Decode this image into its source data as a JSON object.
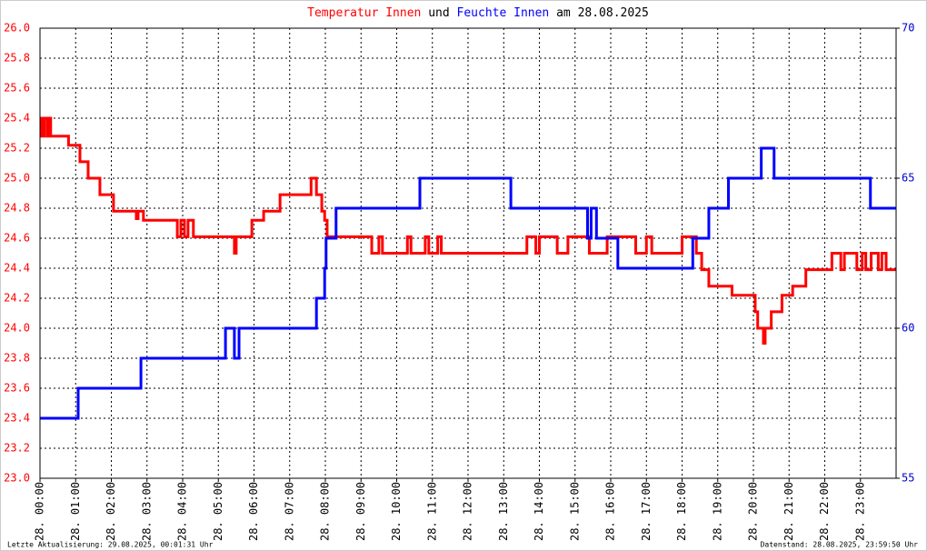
{
  "chart_data": {
    "type": "line",
    "title_connector": "und",
    "title_date": "am 28.08.2025",
    "annotations": [
      "Letzte Aktualisierung: 29.08.2025, 00:01:31 Uhr",
      "Datenstand: 28.08.2025, 23:59:50 Uhr"
    ],
    "xlim": [
      0,
      24
    ],
    "xticks": [
      {
        "value": 0,
        "label": "28. 00:00"
      },
      {
        "value": 1,
        "label": "28. 01:00"
      },
      {
        "value": 2,
        "label": "28. 02:00"
      },
      {
        "value": 3,
        "label": "28. 03:00"
      },
      {
        "value": 4,
        "label": "28. 04:00"
      },
      {
        "value": 5,
        "label": "28. 05:00"
      },
      {
        "value": 6,
        "label": "28. 06:00"
      },
      {
        "value": 7,
        "label": "28. 07:00"
      },
      {
        "value": 8,
        "label": "28. 08:00"
      },
      {
        "value": 9,
        "label": "28. 09:00"
      },
      {
        "value": 10,
        "label": "28. 10:00"
      },
      {
        "value": 11,
        "label": "28. 11:00"
      },
      {
        "value": 12,
        "label": "28. 12:00"
      },
      {
        "value": 13,
        "label": "28. 13:00"
      },
      {
        "value": 14,
        "label": "28. 14:00"
      },
      {
        "value": 15,
        "label": "28. 15:00"
      },
      {
        "value": 16,
        "label": "28. 16:00"
      },
      {
        "value": 17,
        "label": "28. 17:00"
      },
      {
        "value": 18,
        "label": "28. 18:00"
      },
      {
        "value": 19,
        "label": "28. 19:00"
      },
      {
        "value": 20,
        "label": "28. 20:00"
      },
      {
        "value": 21,
        "label": "28. 21:00"
      },
      {
        "value": 22,
        "label": "28. 22:00"
      },
      {
        "value": 23,
        "label": "28. 23:00"
      }
    ],
    "ylim": [
      23,
      26
    ],
    "yticks": [
      {
        "value": 23,
        "label": "23.0"
      },
      23.2,
      23.4,
      23.6,
      23.8,
      {
        "value": 24,
        "label": "24.0"
      },
      24.2,
      24.4,
      24.6,
      24.8,
      {
        "value": 25,
        "label": "25.0"
      },
      25.2,
      25.4,
      25.6,
      25.8,
      {
        "value": 26,
        "label": "26.0"
      }
    ],
    "y2lim": [
      55,
      70
    ],
    "y2ticks": [
      55,
      60,
      65,
      70
    ],
    "grid": true,
    "y_color": "#ff0000",
    "y2_color": "#0000cc",
    "series": [
      {
        "name": "Temperatur Innen",
        "color": "#ff0000",
        "axis": "y",
        "x": [
          0,
          0.05,
          0.05,
          0.12,
          0.12,
          0.2,
          0.2,
          0.25,
          0.25,
          0.3,
          0.3,
          0.8,
          0.8,
          1.12,
          1.12,
          1.35,
          1.35,
          1.68,
          1.68,
          2.06,
          2.06,
          2.7,
          2.7,
          2.75,
          2.75,
          2.9,
          2.9,
          3.85,
          3.85,
          3.95,
          3.95,
          4.05,
          4.05,
          4.15,
          4.15,
          4.3,
          4.3,
          5.45,
          5.45,
          5.5,
          5.5,
          5.94,
          5.94,
          6.27,
          6.27,
          6.73,
          6.73,
          7.6,
          7.6,
          7.75,
          7.75,
          7.9,
          7.9,
          7.98,
          7.98,
          8.05,
          8.05,
          9.3,
          9.3,
          9.5,
          9.5,
          9.6,
          9.6,
          10.3,
          10.3,
          10.4,
          10.4,
          10.8,
          10.8,
          10.9,
          10.9,
          11.15,
          11.15,
          11.25,
          11.25,
          13.65,
          13.65,
          13.9,
          13.9,
          14.0,
          14.0,
          14.5,
          14.5,
          14.8,
          14.8,
          15.4,
          15.4,
          15.9,
          15.9,
          16.7,
          16.7,
          17.0,
          17.0,
          17.15,
          17.15,
          18.0,
          18.0,
          18.4,
          18.4,
          18.55,
          18.55,
          18.75,
          18.75,
          19.4,
          19.4,
          20.05,
          20.05,
          20.12,
          20.12,
          20.28,
          20.28,
          20.33,
          20.33,
          20.5,
          20.5,
          20.8,
          20.8,
          21.1,
          21.1,
          21.47,
          21.47,
          22.2,
          22.2,
          22.45,
          22.45,
          22.55,
          22.55,
          22.9,
          22.9,
          23.05,
          23.05,
          23.15,
          23.15,
          23.3,
          23.3,
          23.5,
          23.5,
          23.6,
          23.6,
          23.72,
          23.72,
          24
        ],
        "values": [
          25.4,
          25.4,
          25.28,
          25.28,
          25.4,
          25.4,
          25.28,
          25.28,
          25.4,
          25.4,
          25.28,
          25.28,
          25.22,
          25.22,
          25.11,
          25.11,
          25.0,
          25.0,
          24.89,
          24.89,
          24.78,
          24.78,
          24.73,
          24.73,
          24.78,
          24.78,
          24.72,
          24.72,
          24.61,
          24.61,
          24.72,
          24.72,
          24.61,
          24.61,
          24.72,
          24.72,
          24.61,
          24.61,
          24.5,
          24.5,
          24.61,
          24.61,
          24.72,
          24.72,
          24.78,
          24.78,
          24.89,
          24.89,
          25.0,
          25.0,
          24.89,
          24.89,
          24.78,
          24.78,
          24.72,
          24.72,
          24.61,
          24.61,
          24.5,
          24.5,
          24.61,
          24.61,
          24.5,
          24.5,
          24.61,
          24.61,
          24.5,
          24.5,
          24.61,
          24.61,
          24.5,
          24.5,
          24.61,
          24.61,
          24.5,
          24.5,
          24.61,
          24.61,
          24.5,
          24.5,
          24.61,
          24.61,
          24.5,
          24.5,
          24.61,
          24.61,
          24.5,
          24.5,
          24.61,
          24.61,
          24.5,
          24.5,
          24.61,
          24.61,
          24.5,
          24.5,
          24.61,
          24.61,
          24.5,
          24.5,
          24.39,
          24.39,
          24.28,
          24.28,
          24.22,
          24.22,
          24.11,
          24.11,
          24.0,
          24.0,
          23.9,
          23.9,
          24.0,
          24.0,
          24.11,
          24.11,
          24.22,
          24.22,
          24.28,
          24.28,
          24.39,
          24.39,
          24.5,
          24.5,
          24.39,
          24.39,
          24.5,
          24.5,
          24.39,
          24.39,
          24.5,
          24.5,
          24.39,
          24.39,
          24.5,
          24.5,
          24.39,
          24.39,
          24.5,
          24.5,
          24.39,
          24.39
        ]
      },
      {
        "name": "Feuchte Innen",
        "color": "#0000ff",
        "axis": "y2",
        "x": [
          0,
          1.07,
          1.07,
          2.83,
          2.83,
          5.2,
          5.2,
          5.45,
          5.45,
          5.58,
          5.58,
          7.75,
          7.75,
          7.98,
          7.98,
          8.02,
          8.02,
          8.3,
          8.3,
          10.65,
          10.65,
          13.2,
          13.2,
          15.35,
          15.35,
          15.45,
          15.45,
          15.6,
          15.6,
          16.2,
          16.2,
          18.3,
          18.3,
          18.75,
          18.75,
          19.3,
          19.3,
          20.22,
          20.22,
          20.58,
          20.58,
          23.28,
          23.28,
          24
        ],
        "values": [
          57,
          57,
          58,
          58,
          59,
          59,
          60,
          60,
          59,
          59,
          60,
          60,
          61,
          61,
          62,
          62,
          63,
          63,
          64,
          64,
          65,
          65,
          64,
          64,
          63,
          63,
          64,
          64,
          63,
          63,
          62,
          62,
          63,
          63,
          64,
          64,
          65,
          65,
          66,
          66,
          65,
          65,
          64,
          64
        ]
      }
    ]
  }
}
